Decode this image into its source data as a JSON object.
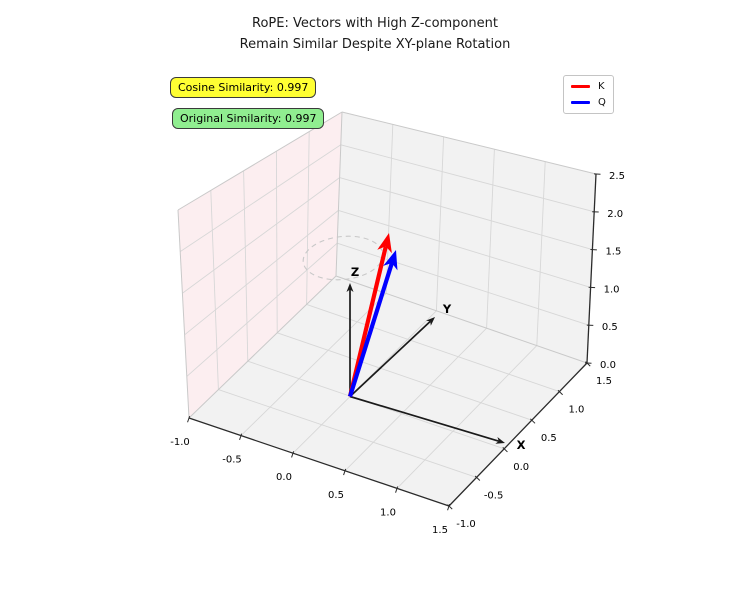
{
  "figure": {
    "title_line1": "RoPE: Vectors with High Z-component",
    "title_line2": "Remain Similar Despite XY-plane Rotation"
  },
  "annotations": {
    "cosine": {
      "text": "Cosine Similarity: 0.997",
      "bg_color": "#ffff33"
    },
    "original": {
      "text": "Original Similarity: 0.997",
      "bg_color": "#90ee90"
    }
  },
  "legend": {
    "items": [
      {
        "label": "K",
        "color": "#ff0000"
      },
      {
        "label": "Q",
        "color": "#0000ff"
      }
    ]
  },
  "chart_data": {
    "type": "3d-quiver",
    "title": "RoPE: Vectors with High Z-component Remain Similar Despite XY-plane Rotation",
    "axes": {
      "x": {
        "label": "X",
        "range": [
          -1.0,
          1.5
        ],
        "tick_labels": [
          "-1.0",
          "-0.5",
          "0.0",
          "0.5",
          "1.0",
          "1.5"
        ]
      },
      "y": {
        "label": "Y",
        "range": [
          -1.0,
          1.5
        ],
        "tick_labels": [
          "-1.0",
          "-0.5",
          "0.0",
          "0.5",
          "1.0",
          "1.5"
        ]
      },
      "z": {
        "label": "Z",
        "range": [
          0.0,
          2.5
        ],
        "tick_labels": [
          "0.0",
          "0.5",
          "1.0",
          "1.5",
          "2.0",
          "2.5"
        ]
      }
    },
    "series": [
      {
        "name": "K",
        "type": "vector",
        "origin": [
          0,
          0,
          0
        ],
        "xyz": [
          0.15,
          0.3,
          2.0
        ],
        "color": "#ff0000"
      },
      {
        "name": "Q",
        "type": "vector",
        "origin": [
          0,
          0,
          0
        ],
        "xyz": [
          0.31,
          0.12,
          2.0
        ],
        "color": "#0000ff"
      }
    ],
    "axis_arrows": [
      {
        "label": "X",
        "xyz": [
          1.5,
          0,
          0
        ]
      },
      {
        "label": "Y",
        "xyz": [
          0,
          1.5,
          0
        ]
      },
      {
        "label": "Z",
        "xyz": [
          0,
          0,
          1.5
        ]
      }
    ],
    "rotation_circle": {
      "center": [
        0,
        0,
        2.0
      ],
      "radius": 0.34,
      "style": "dashed"
    },
    "readouts": {
      "cosine_similarity": 0.997,
      "original_similarity": 0.997
    },
    "legend": {
      "position": "upper right",
      "entries": [
        "K",
        "Q"
      ]
    },
    "grid": true,
    "pane_colors": {
      "left_wall": "#fceef0",
      "back_wall": "#f2f2f2",
      "floor": "#f2f2f2"
    }
  }
}
